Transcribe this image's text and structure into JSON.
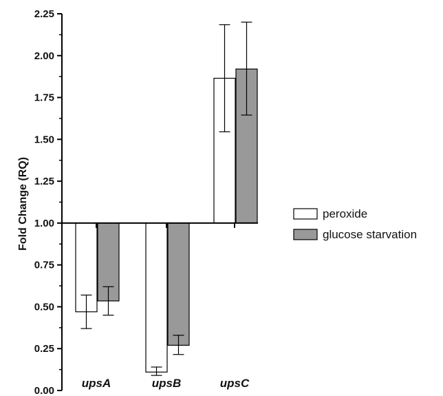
{
  "chart_data": {
    "type": "bar",
    "categories": [
      "upsA",
      "upsB",
      "upsC"
    ],
    "baseline": 1.0,
    "series": [
      {
        "name": "peroxide",
        "color": "#ffffff",
        "values": [
          0.47,
          0.11,
          1.865
        ],
        "errors": [
          [
            0.37,
            0.57
          ],
          [
            0.09,
            0.14
          ],
          [
            1.545,
            2.185
          ]
        ]
      },
      {
        "name": "glucose starvation",
        "color": "#999999",
        "values": [
          0.535,
          0.27,
          1.92
        ],
        "errors": [
          [
            0.45,
            0.62
          ],
          [
            0.215,
            0.33
          ],
          [
            1.645,
            2.2
          ]
        ]
      }
    ],
    "ylabel": "Fold Change (RQ)",
    "xlabel": "",
    "ylim": [
      0,
      2.25
    ],
    "yticks": [
      "0.00",
      "0.25",
      "0.50",
      "0.75",
      "1.00",
      "1.25",
      "1.50",
      "1.75",
      "2.00",
      "2.25"
    ],
    "grid": false,
    "legend_position": "right"
  }
}
